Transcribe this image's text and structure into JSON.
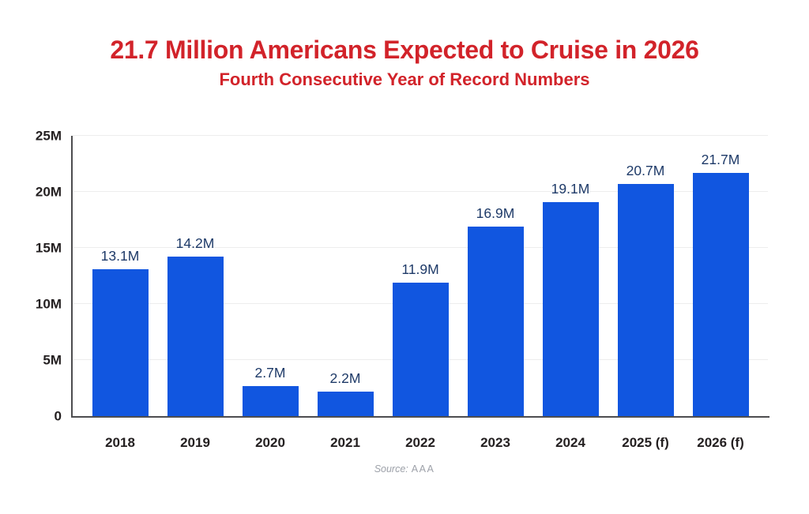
{
  "header": {
    "title": "21.7 Million Americans Expected to Cruise in 2026",
    "subtitle": "Fourth Consecutive Year of Record Numbers"
  },
  "source": {
    "prefix": "Source:",
    "value": "AAA"
  },
  "colors": {
    "title_red": "#D2232A",
    "bar_blue": "#1156E0",
    "data_label_navy": "#1E3A68",
    "axis_text": "#231F20",
    "gridline": "#EDEDED",
    "axis_line": "#4D4D4F",
    "source_gray": "#9DA1A9"
  },
  "chart_data": {
    "type": "bar",
    "title": "21.7 Million Americans Expected to Cruise in 2026",
    "subtitle": "Fourth Consecutive Year of Record Numbers",
    "categories": [
      "2018",
      "2019",
      "2020",
      "2021",
      "2022",
      "2023",
      "2024",
      "2025 (f)",
      "2026 (f)"
    ],
    "values": [
      13.1,
      14.2,
      2.7,
      2.2,
      11.9,
      16.9,
      19.1,
      20.7,
      21.7
    ],
    "value_labels": [
      "13.1M",
      "14.2M",
      "2.7M",
      "2.2M",
      "11.9M",
      "16.9M",
      "19.1M",
      "20.7M",
      "21.7M"
    ],
    "unit": "millions of people",
    "xlabel": "",
    "ylabel": "",
    "ylim": [
      0,
      25
    ],
    "yticks": [
      "0",
      "5M",
      "10M",
      "15M",
      "20M",
      "25M"
    ],
    "grid": true,
    "legend": false,
    "source": "AAA"
  }
}
